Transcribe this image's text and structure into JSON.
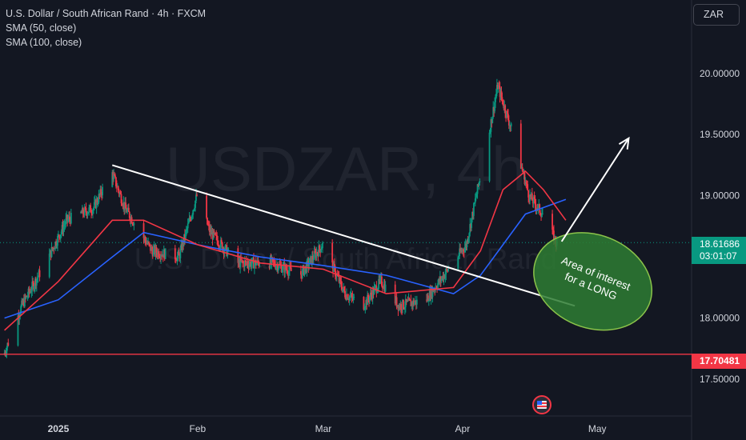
{
  "legend": {
    "title": "U.S. Dollar / South African Rand · 4h · FXCM",
    "sma50": "SMA (50, close)",
    "sma100": "SMA (100, close)"
  },
  "symbol_box": "ZAR",
  "watermark": {
    "symbol": "USDZAR, 4h",
    "name": "U.S. Dollar / South African Rand"
  },
  "current_price": {
    "value": "18.61686",
    "countdown": "03:01:07",
    "level": 18.61686
  },
  "support_level": {
    "value": "17.70481",
    "level": 17.70481
  },
  "annotation": {
    "lines": [
      "Area of interest",
      "for a LONG"
    ]
  },
  "colors": {
    "background": "#131722",
    "up": "#089981",
    "down": "#f23645",
    "sma50": "#f23645",
    "sma100": "#2962ff",
    "ellipse": "#4caf50",
    "trendline": "#ffffff"
  },
  "icons": {
    "calendar_event": "us-flag-icon"
  },
  "chart_data": {
    "type": "candlestick",
    "title": "U.S. Dollar / South African Rand · 4h · FXCM",
    "ylim": [
      17.2,
      20.6
    ],
    "y_ticks": [
      17.5,
      18.0,
      18.5,
      19.0,
      19.5,
      20.0
    ],
    "y_tick_labels": [
      "17.50000",
      "18.00000",
      "",
      "19.00000",
      "19.50000",
      "20.00000"
    ],
    "x_ticks": [
      "2025",
      "Feb",
      "Mar",
      "Apr",
      "May"
    ],
    "x_tick_dates": [
      "2025-01-01",
      "2025-02-01",
      "2025-03-01",
      "2025-04-01",
      "2025-05-01"
    ],
    "xlim": [
      "2024-12-19",
      "2025-05-22"
    ],
    "price_path": [
      [
        "2024-12-20",
        17.7
      ],
      [
        "2024-12-24",
        18.1
      ],
      [
        "2024-12-30",
        18.5
      ],
      [
        "2025-01-03",
        18.8
      ],
      [
        "2025-01-09",
        18.9
      ],
      [
        "2025-01-13",
        19.2
      ],
      [
        "2025-01-16",
        18.9
      ],
      [
        "2025-01-22",
        18.55
      ],
      [
        "2025-01-28",
        18.5
      ],
      [
        "2025-02-01",
        19.0
      ],
      [
        "2025-02-04",
        18.7
      ],
      [
        "2025-02-10",
        18.45
      ],
      [
        "2025-02-18",
        18.45
      ],
      [
        "2025-02-24",
        18.35
      ],
      [
        "2025-03-01",
        18.6
      ],
      [
        "2025-03-06",
        18.2
      ],
      [
        "2025-03-10",
        18.1
      ],
      [
        "2025-03-14",
        18.3
      ],
      [
        "2025-03-18",
        18.1
      ],
      [
        "2025-03-24",
        18.15
      ],
      [
        "2025-03-28",
        18.35
      ],
      [
        "2025-04-02",
        18.6
      ],
      [
        "2025-04-07",
        19.5
      ],
      [
        "2025-04-09",
        19.9
      ],
      [
        "2025-04-12",
        19.55
      ],
      [
        "2025-04-16",
        19.0
      ],
      [
        "2025-04-19",
        18.85
      ],
      [
        "2025-04-22",
        18.62
      ]
    ],
    "series": [
      {
        "name": "SMA (50, close)",
        "path": [
          [
            "2024-12-20",
            17.9
          ],
          [
            "2025-01-01",
            18.3
          ],
          [
            "2025-01-13",
            18.8
          ],
          [
            "2025-01-20",
            18.8
          ],
          [
            "2025-02-01",
            18.6
          ],
          [
            "2025-02-15",
            18.45
          ],
          [
            "2025-03-01",
            18.4
          ],
          [
            "2025-03-15",
            18.2
          ],
          [
            "2025-03-30",
            18.25
          ],
          [
            "2025-04-05",
            18.55
          ],
          [
            "2025-04-10",
            19.05
          ],
          [
            "2025-04-15",
            19.2
          ],
          [
            "2025-04-19",
            19.05
          ],
          [
            "2025-04-24",
            18.8
          ]
        ]
      },
      {
        "name": "SMA (100, close)",
        "path": [
          [
            "2024-12-20",
            18.0
          ],
          [
            "2025-01-01",
            18.15
          ],
          [
            "2025-01-13",
            18.5
          ],
          [
            "2025-01-20",
            18.7
          ],
          [
            "2025-02-01",
            18.6
          ],
          [
            "2025-02-15",
            18.5
          ],
          [
            "2025-03-01",
            18.43
          ],
          [
            "2025-03-15",
            18.35
          ],
          [
            "2025-03-30",
            18.2
          ],
          [
            "2025-04-05",
            18.35
          ],
          [
            "2025-04-10",
            18.6
          ],
          [
            "2025-04-15",
            18.85
          ],
          [
            "2025-04-24",
            18.97
          ]
        ]
      }
    ],
    "drawings": {
      "trendline": [
        [
          "2025-01-13",
          19.25
        ],
        [
          "2025-04-26",
          18.1
        ]
      ],
      "arrow": [
        [
          "2025-04-22",
          18.6
        ],
        [
          "2025-05-08",
          19.47
        ]
      ],
      "horizontal_line": 17.70481
    }
  }
}
